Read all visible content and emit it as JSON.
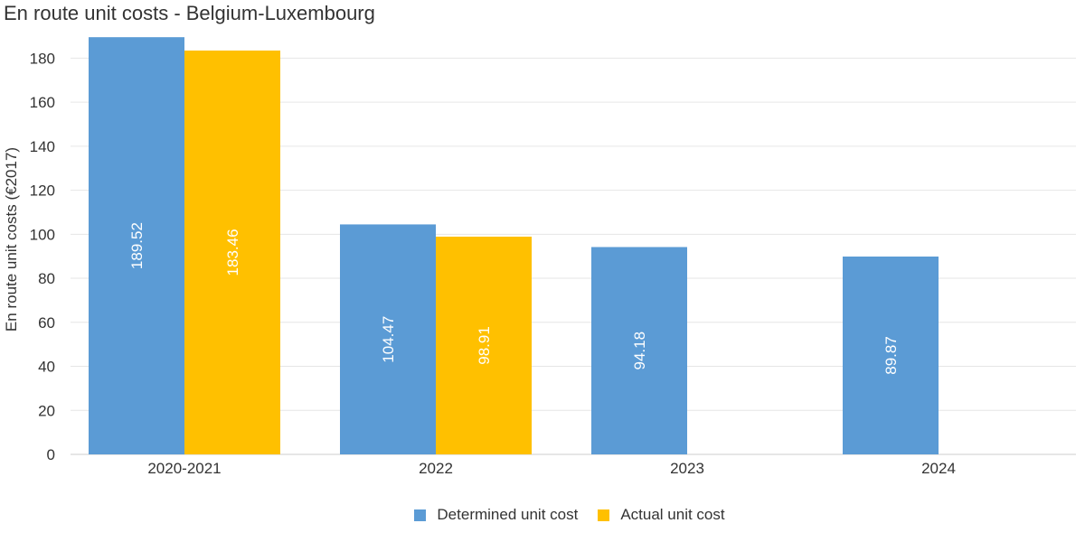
{
  "chart_data": {
    "type": "bar",
    "title": "En route unit costs - Belgium-Luxembourg",
    "ylabel": "En route unit costs (€2017)",
    "xlabel": "",
    "categories": [
      "2020-2021",
      "2022",
      "2023",
      "2024"
    ],
    "series": [
      {
        "name": "Determined unit cost",
        "color": "#5B9BD5",
        "values": [
          189.52,
          104.47,
          94.18,
          89.87
        ],
        "labels": [
          "189.52",
          "104.47",
          "94.18",
          "89.87"
        ]
      },
      {
        "name": "Actual unit cost",
        "color": "#FFC000",
        "values": [
          183.46,
          98.91,
          null,
          null
        ],
        "labels": [
          "183.46",
          "98.91",
          "",
          ""
        ]
      }
    ],
    "ylim": [
      0,
      190
    ],
    "yticks": [
      0,
      20,
      40,
      60,
      80,
      100,
      120,
      140,
      160,
      180
    ],
    "grid": true,
    "legend_position": "bottom"
  }
}
